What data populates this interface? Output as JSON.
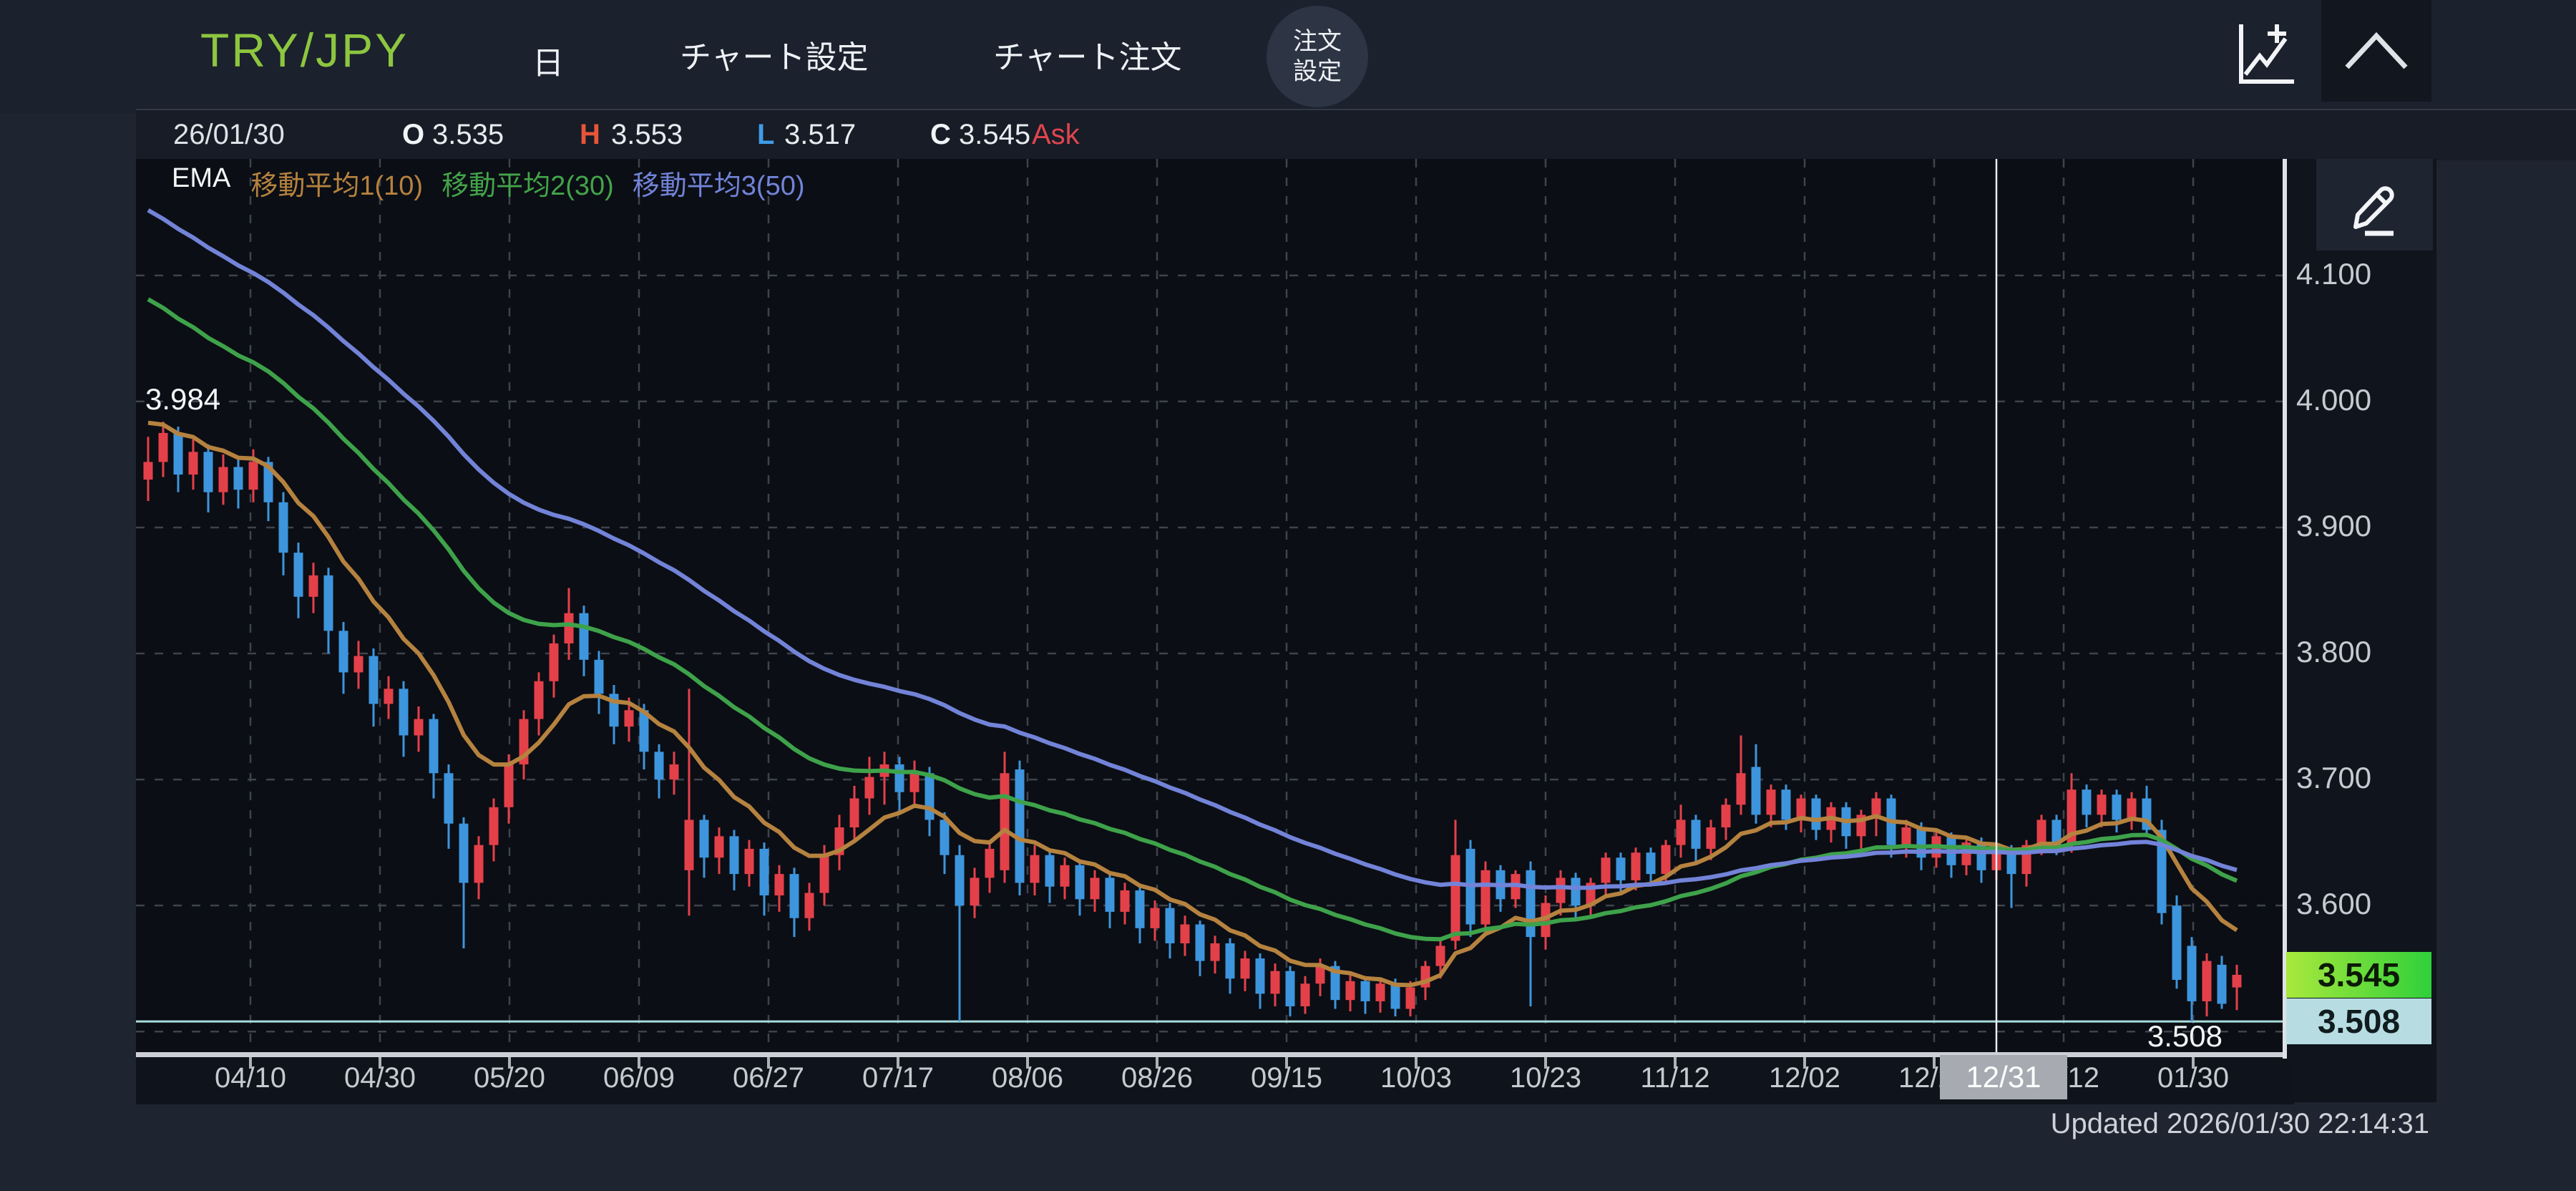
{
  "header": {
    "symbol": "TRY/JPY",
    "timeframe": "日",
    "chart_settings": "チャート設定",
    "chart_order": "チャート注文",
    "order_settings_1": "注文",
    "order_settings_2": "設定"
  },
  "ohlc_bar": {
    "date": "26/01/30",
    "o_label": "O",
    "o": "3.535",
    "h_label": "H",
    "h": "3.553",
    "l_label": "L",
    "l": "3.517",
    "c_label": "C",
    "c": "3.545",
    "side": "Ask"
  },
  "legend": {
    "title": "EMA",
    "items": [
      {
        "label": "移動平均1(10)",
        "color": "#b5823f"
      },
      {
        "label": "移動平均2(30)",
        "color": "#43a44a"
      },
      {
        "label": "移動平均3(50)",
        "color": "#7283d8"
      }
    ]
  },
  "annotations": {
    "high": "3.984",
    "low": "3.508"
  },
  "crosshair": {
    "date_label": "12/31"
  },
  "price_scale": {
    "ask_badge": "3.545",
    "bid_badge": "3.508"
  },
  "footer": {
    "updated": "Updated  2026/01/30 22:14:31"
  },
  "chart_data": {
    "type": "candlestick",
    "pair": "TRY/JPY",
    "timeframe": "daily",
    "y_ticks": [
      "4.100",
      "4.000",
      "3.900",
      "3.800",
      "3.700",
      "3.600"
    ],
    "y_tick_values": [
      4.1,
      4.0,
      3.9,
      3.8,
      3.7,
      3.6
    ],
    "y_grid_values": [
      4.1,
      4.0,
      3.9,
      3.8,
      3.7,
      3.6,
      3.5
    ],
    "y_axis_range": {
      "top": 4.1925,
      "bottom": 3.4825
    },
    "x_ticks": [
      "04/10",
      "04/30",
      "05/20",
      "06/09",
      "06/27",
      "07/17",
      "08/06",
      "08/26",
      "09/15",
      "10/03",
      "10/23",
      "11/12",
      "12/02",
      "12/22",
      "01/12",
      "01/30"
    ],
    "support_line": 3.508,
    "annotated_high": 3.984,
    "annotated_low": 3.508,
    "crosshair_index": 123,
    "up_color": "#e4404a",
    "down_color": "#3d95dd",
    "ma": [
      {
        "period": 10,
        "seed": 3.99,
        "color": "#b5823f"
      },
      {
        "period": 30,
        "seed": 4.09,
        "color": "#3ea24a"
      },
      {
        "period": 50,
        "seed": 4.16,
        "color": "#7283d8"
      }
    ],
    "candles": [
      [
        3.938,
        3.972,
        3.921,
        3.952
      ],
      [
        3.952,
        3.984,
        3.94,
        3.975
      ],
      [
        3.975,
        3.98,
        3.928,
        3.942
      ],
      [
        3.942,
        3.97,
        3.93,
        3.96
      ],
      [
        3.96,
        3.966,
        3.912,
        3.928
      ],
      [
        3.928,
        3.958,
        3.918,
        3.948
      ],
      [
        3.948,
        3.955,
        3.915,
        3.93
      ],
      [
        3.93,
        3.962,
        3.92,
        3.952
      ],
      [
        3.952,
        3.956,
        3.905,
        3.92
      ],
      [
        3.92,
        3.928,
        3.862,
        3.88
      ],
      [
        3.88,
        3.888,
        3.828,
        3.845
      ],
      [
        3.845,
        3.872,
        3.832,
        3.862
      ],
      [
        3.862,
        3.868,
        3.8,
        3.818
      ],
      [
        3.818,
        3.825,
        3.768,
        3.785
      ],
      [
        3.785,
        3.81,
        3.772,
        3.798
      ],
      [
        3.798,
        3.804,
        3.742,
        3.76
      ],
      [
        3.76,
        3.782,
        3.748,
        3.772
      ],
      [
        3.772,
        3.778,
        3.718,
        3.735
      ],
      [
        3.735,
        3.758,
        3.722,
        3.748
      ],
      [
        3.748,
        3.752,
        3.685,
        3.705
      ],
      [
        3.705,
        3.712,
        3.645,
        3.665
      ],
      [
        3.665,
        3.67,
        3.566,
        3.618
      ],
      [
        3.618,
        3.655,
        3.605,
        3.648
      ],
      [
        3.648,
        3.685,
        3.635,
        3.678
      ],
      [
        3.678,
        3.72,
        3.665,
        3.712
      ],
      [
        3.712,
        3.755,
        3.7,
        3.748
      ],
      [
        3.748,
        3.785,
        3.735,
        3.778
      ],
      [
        3.778,
        3.815,
        3.765,
        3.808
      ],
      [
        3.808,
        3.852,
        3.795,
        3.832
      ],
      [
        3.832,
        3.838,
        3.782,
        3.795
      ],
      [
        3.795,
        3.802,
        3.752,
        3.768
      ],
      [
        3.768,
        3.775,
        3.728,
        3.742
      ],
      [
        3.742,
        3.765,
        3.73,
        3.755
      ],
      [
        3.755,
        3.76,
        3.708,
        3.722
      ],
      [
        3.722,
        3.728,
        3.685,
        3.7
      ],
      [
        3.7,
        3.722,
        3.688,
        3.712
      ],
      [
        3.628,
        3.772,
        3.592,
        3.668
      ],
      [
        3.668,
        3.672,
        3.622,
        3.638
      ],
      [
        3.638,
        3.662,
        3.625,
        3.655
      ],
      [
        3.655,
        3.66,
        3.612,
        3.625
      ],
      [
        3.625,
        3.652,
        3.615,
        3.645
      ],
      [
        3.645,
        3.65,
        3.592,
        3.608
      ],
      [
        3.608,
        3.632,
        3.595,
        3.625
      ],
      [
        3.625,
        3.63,
        3.575,
        3.59
      ],
      [
        3.59,
        3.618,
        3.58,
        3.61
      ],
      [
        3.61,
        3.648,
        3.6,
        3.64
      ],
      [
        3.64,
        3.672,
        3.628,
        3.662
      ],
      [
        3.662,
        3.695,
        3.65,
        3.685
      ],
      [
        3.685,
        3.718,
        3.672,
        3.702
      ],
      [
        3.702,
        3.722,
        3.68,
        3.712
      ],
      [
        3.712,
        3.718,
        3.672,
        3.69
      ],
      [
        3.69,
        3.715,
        3.678,
        3.705
      ],
      [
        3.705,
        3.71,
        3.655,
        3.668
      ],
      [
        3.668,
        3.674,
        3.625,
        3.64
      ],
      [
        3.64,
        3.648,
        3.508,
        3.6
      ],
      [
        3.6,
        3.63,
        3.59,
        3.622
      ],
      [
        3.622,
        3.652,
        3.61,
        3.645
      ],
      [
        3.628,
        3.722,
        3.618,
        3.705
      ],
      [
        3.708,
        3.715,
        3.608,
        3.618
      ],
      [
        3.618,
        3.648,
        3.608,
        3.64
      ],
      [
        3.64,
        3.645,
        3.602,
        3.615
      ],
      [
        3.615,
        3.638,
        3.605,
        3.632
      ],
      [
        3.632,
        3.636,
        3.592,
        3.605
      ],
      [
        3.605,
        3.628,
        3.595,
        3.622
      ],
      [
        3.622,
        3.626,
        3.582,
        3.595
      ],
      [
        3.595,
        3.618,
        3.585,
        3.612
      ],
      [
        3.612,
        3.616,
        3.57,
        3.582
      ],
      [
        3.582,
        3.604,
        3.572,
        3.598
      ],
      [
        3.598,
        3.602,
        3.558,
        3.57
      ],
      [
        3.57,
        3.592,
        3.56,
        3.585
      ],
      [
        3.585,
        3.588,
        3.544,
        3.556
      ],
      [
        3.556,
        3.576,
        3.546,
        3.57
      ],
      [
        3.57,
        3.574,
        3.53,
        3.542
      ],
      [
        3.542,
        3.564,
        3.532,
        3.558
      ],
      [
        3.558,
        3.562,
        3.518,
        3.53
      ],
      [
        3.53,
        3.554,
        3.52,
        3.548
      ],
      [
        3.548,
        3.552,
        3.512,
        3.52
      ],
      [
        3.52,
        3.544,
        3.514,
        3.538
      ],
      [
        3.538,
        3.558,
        3.528,
        3.552
      ],
      [
        3.552,
        3.556,
        3.518,
        3.525
      ],
      [
        3.525,
        3.546,
        3.516,
        3.54
      ],
      [
        3.54,
        3.544,
        3.514,
        3.524
      ],
      [
        3.524,
        3.542,
        3.515,
        3.538
      ],
      [
        3.538,
        3.542,
        3.512,
        3.518
      ],
      [
        3.518,
        3.54,
        3.512,
        3.535
      ],
      [
        3.535,
        3.556,
        3.525,
        3.552
      ],
      [
        3.552,
        3.572,
        3.542,
        3.568
      ],
      [
        3.572,
        3.668,
        3.565,
        3.64
      ],
      [
        3.645,
        3.652,
        3.575,
        3.585
      ],
      [
        3.585,
        3.635,
        3.578,
        3.628
      ],
      [
        3.628,
        3.632,
        3.595,
        3.605
      ],
      [
        3.605,
        3.628,
        3.598,
        3.625
      ],
      [
        3.628,
        3.635,
        3.52,
        3.575
      ],
      [
        3.575,
        3.608,
        3.565,
        3.602
      ],
      [
        3.602,
        3.628,
        3.592,
        3.622
      ],
      [
        3.622,
        3.626,
        3.588,
        3.6
      ],
      [
        3.6,
        3.622,
        3.59,
        3.618
      ],
      [
        3.618,
        3.642,
        3.608,
        3.638
      ],
      [
        3.638,
        3.642,
        3.61,
        3.62
      ],
      [
        3.62,
        3.646,
        3.612,
        3.642
      ],
      [
        3.642,
        3.646,
        3.615,
        3.625
      ],
      [
        3.625,
        3.652,
        3.618,
        3.648
      ],
      [
        3.648,
        3.68,
        3.638,
        3.668
      ],
      [
        3.668,
        3.672,
        3.635,
        3.645
      ],
      [
        3.645,
        3.668,
        3.636,
        3.662
      ],
      [
        3.662,
        3.685,
        3.652,
        3.68
      ],
      [
        3.68,
        3.735,
        3.672,
        3.705
      ],
      [
        3.71,
        3.728,
        3.665,
        3.672
      ],
      [
        3.672,
        3.696,
        3.662,
        3.692
      ],
      [
        3.692,
        3.696,
        3.66,
        3.668
      ],
      [
        3.668,
        3.688,
        3.658,
        3.685
      ],
      [
        3.685,
        3.688,
        3.652,
        3.66
      ],
      [
        3.66,
        3.682,
        3.65,
        3.678
      ],
      [
        3.678,
        3.682,
        3.645,
        3.655
      ],
      [
        3.655,
        3.676,
        3.645,
        3.672
      ],
      [
        3.672,
        3.69,
        3.655,
        3.685
      ],
      [
        3.685,
        3.688,
        3.638,
        3.648
      ],
      [
        3.648,
        3.668,
        3.638,
        3.662
      ],
      [
        3.662,
        3.666,
        3.628,
        3.638
      ],
      [
        3.638,
        3.66,
        3.63,
        3.655
      ],
      [
        3.655,
        3.658,
        3.622,
        3.632
      ],
      [
        3.632,
        3.654,
        3.624,
        3.65
      ],
      [
        3.65,
        3.654,
        3.618,
        3.628
      ],
      [
        3.628,
        3.65,
        3.62,
        3.645
      ],
      [
        3.645,
        3.648,
        3.598,
        3.625
      ],
      [
        3.625,
        3.652,
        3.615,
        3.648
      ],
      [
        3.648,
        3.672,
        3.64,
        3.668
      ],
      [
        3.668,
        3.672,
        3.64,
        3.648
      ],
      [
        3.648,
        3.705,
        3.642,
        3.692
      ],
      [
        3.692,
        3.696,
        3.662,
        3.672
      ],
      [
        3.672,
        3.692,
        3.662,
        3.688
      ],
      [
        3.688,
        3.692,
        3.658,
        3.668
      ],
      [
        3.668,
        3.69,
        3.66,
        3.685
      ],
      [
        3.685,
        3.695,
        3.655,
        3.66
      ],
      [
        3.66,
        3.668,
        3.585,
        3.594
      ],
      [
        3.6,
        3.608,
        3.534,
        3.541
      ],
      [
        3.568,
        3.575,
        3.508,
        3.524
      ],
      [
        3.524,
        3.562,
        3.512,
        3.556
      ],
      [
        3.553,
        3.56,
        3.518,
        3.522
      ],
      [
        3.535,
        3.553,
        3.517,
        3.545
      ]
    ]
  }
}
